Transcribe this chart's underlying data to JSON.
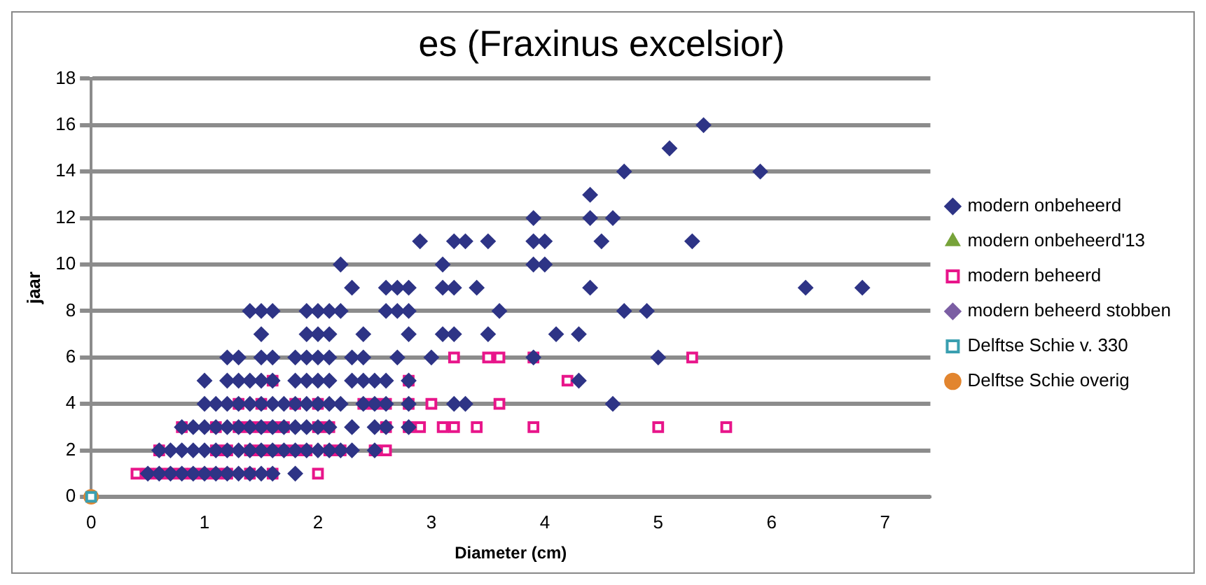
{
  "chart_data": {
    "type": "scatter",
    "title": "es (Fraxinus excelsior)",
    "xlabel": "Diameter (cm)",
    "ylabel": "jaar",
    "xlim": [
      0,
      7.4
    ],
    "xticks": [
      0,
      1,
      2,
      3,
      4,
      5,
      6,
      7
    ],
    "ylim": [
      0,
      18
    ],
    "yticks": [
      0,
      2,
      4,
      6,
      8,
      10,
      12,
      14,
      16,
      18
    ],
    "grid": "y",
    "legend": "right",
    "series": [
      {
        "name": "modern onbeheerd",
        "color": "#2e3486",
        "marker": "diamond",
        "x": [
          0.5,
          0.6,
          0.7,
          0.8,
          0.9,
          1.0,
          1.1,
          1.2,
          1.3,
          1.4,
          1.5,
          1.6,
          1.8,
          0.6,
          0.7,
          0.8,
          0.9,
          1.0,
          1.1,
          1.2,
          1.3,
          1.4,
          1.5,
          1.6,
          1.7,
          1.8,
          1.9,
          2.0,
          2.1,
          2.2,
          2.3,
          2.5,
          0.8,
          0.9,
          1.0,
          1.1,
          1.2,
          1.3,
          1.4,
          1.5,
          1.6,
          1.7,
          1.8,
          1.9,
          2.0,
          2.1,
          2.3,
          2.5,
          2.6,
          2.8,
          1.0,
          1.1,
          1.2,
          1.3,
          1.4,
          1.5,
          1.6,
          1.7,
          1.8,
          1.9,
          2.0,
          2.1,
          2.2,
          2.4,
          2.5,
          2.6,
          2.8,
          3.2,
          3.3,
          4.6,
          1.0,
          1.2,
          1.3,
          1.4,
          1.5,
          1.6,
          1.8,
          1.9,
          2.0,
          2.1,
          2.3,
          2.4,
          2.5,
          2.6,
          2.8,
          4.3,
          1.2,
          1.3,
          1.5,
          1.6,
          1.8,
          1.9,
          2.0,
          2.1,
          2.3,
          2.4,
          2.7,
          3.0,
          3.9,
          5.0,
          1.5,
          1.9,
          2.0,
          2.1,
          2.4,
          2.8,
          3.1,
          3.2,
          3.5,
          4.1,
          4.3,
          1.4,
          1.5,
          1.6,
          1.9,
          2.0,
          2.1,
          2.2,
          2.6,
          2.7,
          2.8,
          3.6,
          4.7,
          4.9,
          2.3,
          2.6,
          2.7,
          2.8,
          3.1,
          3.2,
          3.4,
          4.4,
          6.3,
          6.8,
          2.2,
          3.1,
          3.9,
          4.0,
          2.9,
          3.2,
          3.3,
          3.5,
          3.9,
          4.0,
          4.5,
          5.3,
          3.9,
          4.4,
          4.6,
          4.4,
          4.7,
          5.9,
          5.1,
          5.4
        ],
        "values": [
          1,
          1,
          1,
          1,
          1,
          1,
          1,
          1,
          1,
          1,
          1,
          1,
          1,
          2,
          2,
          2,
          2,
          2,
          2,
          2,
          2,
          2,
          2,
          2,
          2,
          2,
          2,
          2,
          2,
          2,
          2,
          2,
          3,
          3,
          3,
          3,
          3,
          3,
          3,
          3,
          3,
          3,
          3,
          3,
          3,
          3,
          3,
          3,
          3,
          3,
          4,
          4,
          4,
          4,
          4,
          4,
          4,
          4,
          4,
          4,
          4,
          4,
          4,
          4,
          4,
          4,
          4,
          4,
          4,
          4,
          5,
          5,
          5,
          5,
          5,
          5,
          5,
          5,
          5,
          5,
          5,
          5,
          5,
          5,
          5,
          5,
          6,
          6,
          6,
          6,
          6,
          6,
          6,
          6,
          6,
          6,
          6,
          6,
          6,
          6,
          7,
          7,
          7,
          7,
          7,
          7,
          7,
          7,
          7,
          7,
          7,
          8,
          8,
          8,
          8,
          8,
          8,
          8,
          8,
          8,
          8,
          8,
          8,
          8,
          9,
          9,
          9,
          9,
          9,
          9,
          9,
          9,
          9,
          9,
          10,
          10,
          10,
          10,
          11,
          11,
          11,
          11,
          11,
          11,
          11,
          11,
          12,
          12,
          12,
          13,
          14,
          14,
          15,
          16
        ]
      },
      {
        "name": "modern onbeheerd'13",
        "color": "#77a33a",
        "marker": "triangle"
      },
      {
        "name": "modern beheerd",
        "color": "#e8158a",
        "marker": "square",
        "x": [
          0.4,
          0.5,
          0.6,
          0.7,
          0.8,
          0.9,
          1.0,
          1.1,
          1.2,
          1.4,
          1.6,
          2.0,
          0.6,
          1.1,
          1.2,
          1.4,
          1.5,
          1.6,
          1.7,
          1.8,
          1.9,
          2.1,
          2.2,
          2.5,
          2.6,
          0.8,
          1.1,
          1.3,
          1.4,
          1.5,
          1.6,
          1.7,
          2.0,
          2.1,
          2.6,
          2.8,
          2.9,
          3.1,
          3.2,
          3.4,
          3.9,
          5.0,
          5.6,
          1.3,
          1.5,
          1.8,
          2.0,
          2.4,
          2.5,
          2.6,
          2.8,
          3.0,
          3.6,
          1.6,
          2.8,
          4.2,
          3.2,
          3.5,
          3.6,
          3.9,
          5.3
        ],
        "values": [
          1,
          1,
          1,
          1,
          1,
          1,
          1,
          1,
          1,
          1,
          1,
          1,
          2,
          2,
          2,
          2,
          2,
          2,
          2,
          2,
          2,
          2,
          2,
          2,
          2,
          3,
          3,
          3,
          3,
          3,
          3,
          3,
          3,
          3,
          3,
          3,
          3,
          3,
          3,
          3,
          3,
          3,
          3,
          4,
          4,
          4,
          4,
          4,
          4,
          4,
          4,
          4,
          4,
          5,
          5,
          5,
          6,
          6,
          6,
          6,
          6
        ]
      },
      {
        "name": "modern beheerd stobben",
        "color": "#7b5ea3",
        "marker": "diamond"
      },
      {
        "name": "Delftse Schie v. 330",
        "color": "#3a9fb0",
        "marker": "square",
        "x": [
          0
        ],
        "values": [
          0
        ]
      },
      {
        "name": "Delftse Schie overig",
        "color": "#e2852f",
        "marker": "circle",
        "x": [
          0
        ],
        "values": [
          0
        ]
      }
    ]
  }
}
